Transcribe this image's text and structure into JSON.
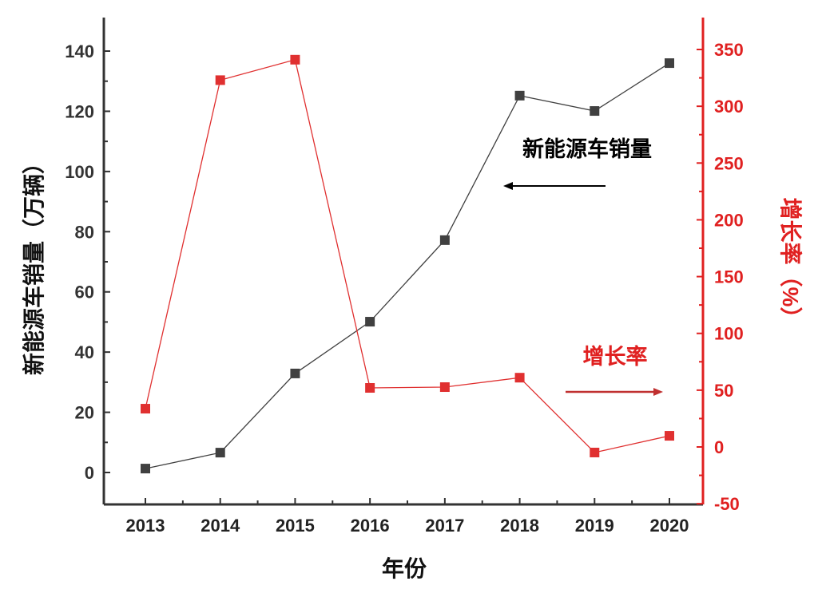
{
  "chart_data": {
    "type": "line",
    "xlabel": "年份",
    "ylabel_left": "新能源车销量（万辆）",
    "ylabel_right": "增长率（%）",
    "categories": [
      "2013",
      "2014",
      "2015",
      "2016",
      "2017",
      "2018",
      "2019",
      "2020"
    ],
    "ylim_left": [
      -10,
      150
    ],
    "ylim_right": [
      -50,
      375
    ],
    "yticks_left": [
      0,
      20,
      40,
      60,
      80,
      100,
      120,
      140
    ],
    "yticks_right": [
      -50,
      0,
      50,
      100,
      150,
      200,
      250,
      300,
      350
    ],
    "grid": false,
    "series": [
      {
        "name": "新能源车销量",
        "axis": "left",
        "color": "#404040",
        "values": [
          1.3,
          6.6,
          32.9,
          50.1,
          77.2,
          125.2,
          120.1,
          136.0
        ]
      },
      {
        "name": "增长率",
        "axis": "right",
        "color": "#e03030",
        "values": [
          33.7,
          323,
          341,
          52,
          52.7,
          61,
          -4.9,
          9.8
        ]
      }
    ],
    "annotations": [
      {
        "text": "新能源车销量",
        "arrow": "left"
      },
      {
        "text": "增长率",
        "arrow": "right"
      }
    ]
  }
}
